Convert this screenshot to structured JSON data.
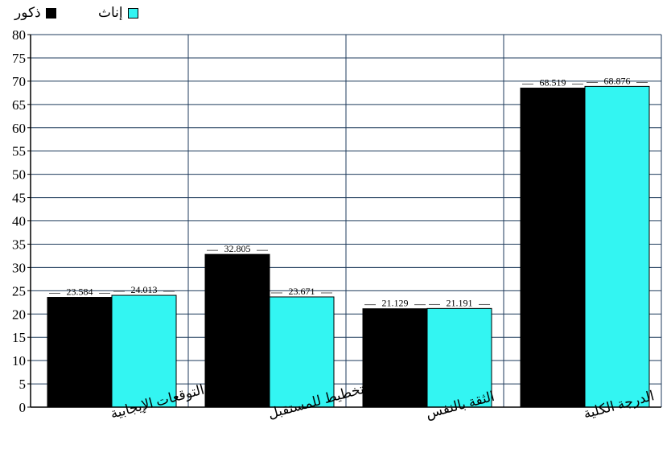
{
  "chart_data": {
    "type": "bar",
    "title": "",
    "xlabel": "",
    "ylabel": "",
    "categories": [
      "التوقعات الإيجابية",
      "التخطيط للمستقبل",
      "الثقة بالنفس",
      "الدرجة الكلية"
    ],
    "series": [
      {
        "name": "ذكور",
        "color": "#000000",
        "values": [
          23.584,
          32.805,
          21.129,
          68.519
        ]
      },
      {
        "name": "إناث",
        "color": "#33f5f2",
        "values": [
          24.013,
          23.671,
          21.191,
          68.876
        ]
      }
    ],
    "ylim": [
      0,
      80
    ],
    "yticks": [
      0,
      5,
      10,
      15,
      20,
      25,
      30,
      35,
      40,
      45,
      50,
      55,
      60,
      65,
      70,
      75,
      80
    ],
    "value_labels": [
      [
        "23.584",
        "32.805",
        "21.129",
        "68.519"
      ],
      [
        "24.013",
        "23.671",
        "21.191",
        "68.876"
      ]
    ],
    "grid": true,
    "legend_position": "top-left",
    "colors": {
      "grid": "#1f3b5c",
      "axis": "#000000"
    }
  }
}
